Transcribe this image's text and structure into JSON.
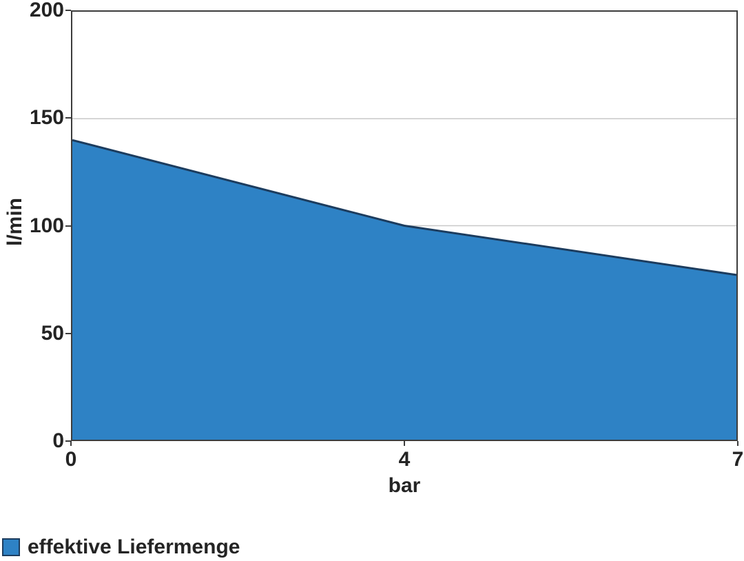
{
  "chart_data": {
    "type": "area",
    "categories": [
      "0",
      "4",
      "7"
    ],
    "values": [
      140,
      100,
      77
    ],
    "title": "",
    "xlabel": "bar",
    "ylabel": "l/min",
    "ylim": [
      0,
      200
    ],
    "yticks": [
      0,
      50,
      100,
      150,
      200
    ],
    "gridlines": [
      50,
      100,
      150
    ],
    "grid": "horizontal-only",
    "x_axis_spacing": "categorical-equal",
    "legend_position": "bottom-left",
    "legend": [
      {
        "label": "effektive Liefermenge",
        "swatch_color": "#2E82C5"
      }
    ],
    "colors": {
      "area_fill": "#2E82C5",
      "area_stroke": "#1C3C5E",
      "grid": "#C8C8C8",
      "axis": "#3C3C3C",
      "text": "#242424",
      "background": "#FFFFFF"
    }
  }
}
